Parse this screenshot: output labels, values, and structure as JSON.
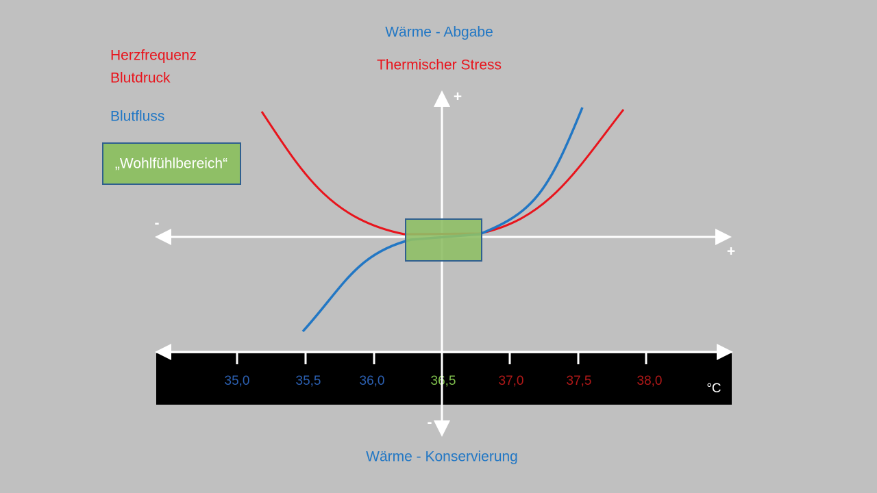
{
  "header": {
    "top_label": "Wärme - Abgabe",
    "top_sublabel": "Thermischer Stress",
    "bottom_label": "Wärme - Konservierung"
  },
  "legend": {
    "items": [
      "Herzfrequenz",
      "Blutdruck",
      "Blutfluss"
    ]
  },
  "comfort_zone": {
    "label": "„Wohlfühlbereich“"
  },
  "axis": {
    "plus_top": "+",
    "minus_bottom": "-",
    "minus_left": "-",
    "plus_right": "+",
    "unit": "°C",
    "ticks": [
      "35,0",
      "35,5",
      "36,0",
      "36,5",
      "37,0",
      "37,5",
      "38,0"
    ]
  }
}
